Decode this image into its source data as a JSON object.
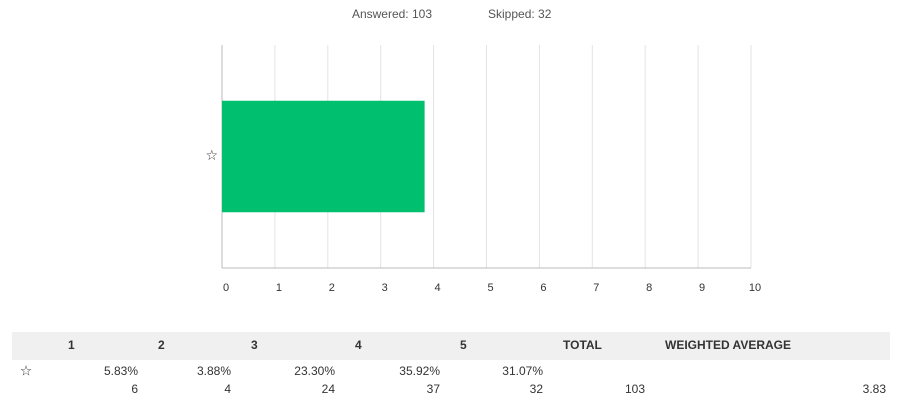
{
  "summary": {
    "answered": "Answered: 103",
    "skipped": "Skipped: 32"
  },
  "chart_data": {
    "type": "hbar",
    "categories": [
      "☆"
    ],
    "values": [
      3.83
    ],
    "color": "#00bf6f",
    "xlim": [
      0,
      10
    ],
    "xticks": [
      0,
      1,
      2,
      3,
      4,
      5,
      6,
      7,
      8,
      9,
      10
    ],
    "grid": true
  },
  "table": {
    "header": [
      "1",
      "2",
      "3",
      "4",
      "5",
      "TOTAL",
      "WEIGHTED AVERAGE"
    ],
    "rows": [
      {
        "label": "☆",
        "percents": [
          "5.83%",
          "3.88%",
          "23.30%",
          "35.92%",
          "31.07%"
        ],
        "counts": [
          6,
          4,
          24,
          37,
          32
        ],
        "total": 103,
        "weighted_average": 3.83
      }
    ]
  }
}
